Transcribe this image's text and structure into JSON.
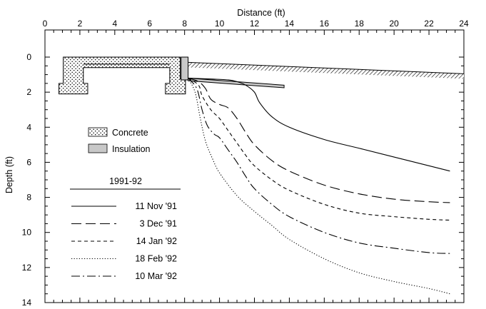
{
  "chart_data": {
    "type": "line",
    "xlabel": "Distance (ft)",
    "ylabel": "Depth (ft)",
    "xlim": [
      0,
      24
    ],
    "ylim": [
      0,
      14
    ],
    "y_inverted": true,
    "x_axis_position": "top",
    "grid": false,
    "x_ticks": [
      0,
      2,
      4,
      6,
      8,
      10,
      12,
      14,
      16,
      18,
      20,
      22,
      24
    ],
    "y_ticks": [
      0,
      2,
      4,
      6,
      8,
      10,
      12,
      14
    ],
    "legend_title": "1991-92",
    "legend_position": "bottom-left",
    "series": [
      {
        "name": "11 Nov '91",
        "style": "solid",
        "x": [
          8.2,
          9.5,
          10.5,
          11.0,
          11.5,
          12.0,
          12.3,
          13.0,
          14.0,
          16.0,
          18.0,
          20.0,
          22.0,
          23.2
        ],
        "y": [
          1.2,
          1.25,
          1.3,
          1.4,
          1.6,
          2.0,
          2.6,
          3.4,
          4.0,
          4.7,
          5.2,
          5.7,
          6.2,
          6.5
        ]
      },
      {
        "name": "3 Dec '91",
        "style": "long-dash",
        "x": [
          8.2,
          8.8,
          9.2,
          9.5,
          10.0,
          10.5,
          11.0,
          11.5,
          12.0,
          13.0,
          14.0,
          16.0,
          18.0,
          20.0,
          22.0,
          23.2
        ],
        "y": [
          1.2,
          1.4,
          1.8,
          2.4,
          2.7,
          2.9,
          3.5,
          4.3,
          5.0,
          5.9,
          6.5,
          7.3,
          7.8,
          8.1,
          8.25,
          8.3
        ]
      },
      {
        "name": "14 Jan '92",
        "style": "dashed",
        "x": [
          8.2,
          8.8,
          9.0,
          9.5,
          10.0,
          10.5,
          11.0,
          11.5,
          12.0,
          13.0,
          14.0,
          16.0,
          18.0,
          20.0,
          22.0,
          23.2
        ],
        "y": [
          1.2,
          1.6,
          2.2,
          3.0,
          3.5,
          4.2,
          4.9,
          5.6,
          6.2,
          7.0,
          7.6,
          8.4,
          8.9,
          9.1,
          9.25,
          9.3
        ]
      },
      {
        "name": "18 Feb '92",
        "style": "dotted",
        "x": [
          8.2,
          8.6,
          8.9,
          9.2,
          9.6,
          10.0,
          11.0,
          12.0,
          13.0,
          14.0,
          16.0,
          18.0,
          20.0,
          22.0,
          23.2
        ],
        "y": [
          1.2,
          2.0,
          3.5,
          4.8,
          5.8,
          6.6,
          7.9,
          8.8,
          9.6,
          10.4,
          11.5,
          12.3,
          12.8,
          13.2,
          13.5
        ]
      },
      {
        "name": "10 Mar '92",
        "style": "dash-dot",
        "x": [
          8.2,
          8.7,
          9.0,
          9.3,
          9.7,
          10.0,
          10.5,
          11.0,
          11.5,
          12.0,
          13.0,
          14.0,
          16.0,
          18.0,
          20.0,
          22.0,
          23.2
        ],
        "y": [
          1.2,
          1.8,
          3.0,
          3.9,
          4.4,
          4.6,
          5.3,
          6.0,
          6.8,
          7.5,
          8.4,
          9.1,
          10.0,
          10.6,
          10.9,
          11.15,
          11.2
        ]
      }
    ],
    "structure": {
      "material_legend": [
        {
          "label": "Concrete",
          "pattern": "stipple"
        },
        {
          "label": "Insulation",
          "pattern": "gray-fill",
          "color": "#c8c8c8"
        }
      ],
      "ground_surface": {
        "x": [
          8.2,
          24.0
        ],
        "y": [
          0.3,
          0.95
        ]
      },
      "insulation_strip": {
        "x": [
          8.2,
          13.7
        ],
        "y_top": [
          1.2,
          1.6
        ],
        "y_bottom": [
          1.35,
          1.75
        ]
      },
      "wall_insulation": {
        "x": [
          7.8,
          8.2
        ],
        "y": [
          0.0,
          1.3
        ]
      }
    }
  }
}
